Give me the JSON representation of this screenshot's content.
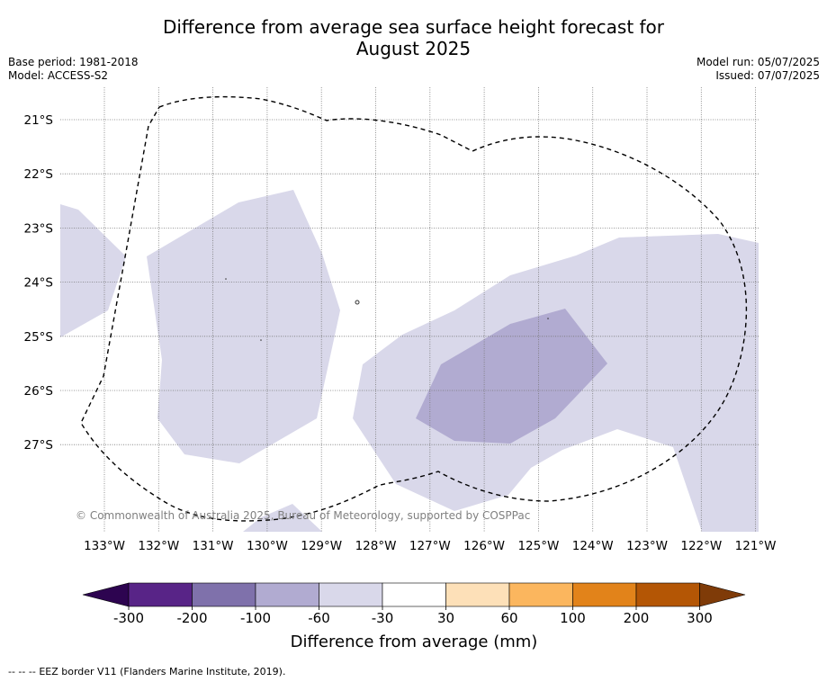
{
  "title_line1": "Difference from average sea surface height forecast for",
  "title_line2": "August 2025",
  "base_period": "Base period: 1981-2018",
  "model": "Model: ACCESS-S2",
  "model_run": "Model run: 05/07/2025",
  "issued": "Issued: 07/07/2025",
  "map": {
    "lat_labels": [
      "21°S",
      "22°S",
      "23°S",
      "24°S",
      "25°S",
      "26°S",
      "27°S"
    ],
    "lon_labels": [
      "133°W",
      "132°W",
      "131°W",
      "130°W",
      "129°W",
      "128°W",
      "127°W",
      "126°W",
      "125°W",
      "124°W",
      "123°W",
      "122°W",
      "121°W"
    ],
    "copyright": "© Commonwealth of Australia 2025, Bureau of Meteorology, supported by COSPPac",
    "fill_colors": {
      "level_-60_-30": "#d9d8ea",
      "level_-100_-60": "#b1abd1"
    }
  },
  "colorbar": {
    "title": "Difference from average (mm)",
    "tick_labels": [
      "-300",
      "-200",
      "-100",
      "-60",
      "-30",
      "30",
      "60",
      "100",
      "200",
      "300"
    ],
    "colors": [
      "#582487",
      "#7f71ab",
      "#b1abd1",
      "#d9d8ea",
      "#ffffff",
      "#fde0b8",
      "#fbb65e",
      "#e2831a",
      "#b45605"
    ],
    "under_color": "#2d0450",
    "over_color": "#7f3b08"
  },
  "legend": {
    "eez_line_symbol": "--  --  --",
    "eez_text": "EEZ border V11 (Flanders Marine Institute, 2019)."
  }
}
